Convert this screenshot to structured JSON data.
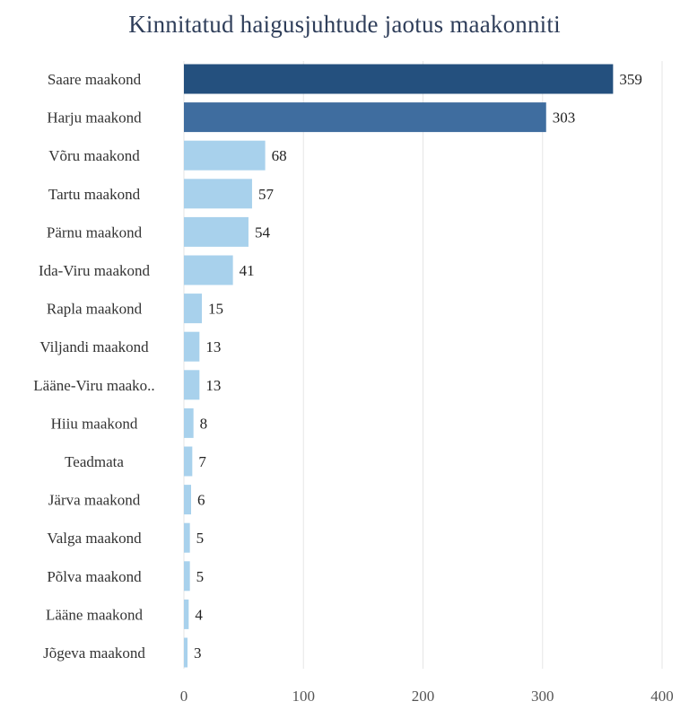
{
  "chart_data": {
    "type": "bar",
    "orientation": "horizontal",
    "title": "Kinnitatud haigusjuhtude jaotus maakonniti",
    "categories": [
      "Saare maakond",
      "Harju maakond",
      "Võru maakond",
      "Tartu maakond",
      "Pärnu maakond",
      "Ida-Viru maakond",
      "Rapla maakond",
      "Viljandi maakond",
      "Lääne-Viru maako..",
      "Hiiu maakond",
      "Teadmata",
      "Järva maakond",
      "Valga maakond",
      "Põlva maakond",
      "Lääne maakond",
      "Jõgeva maakond"
    ],
    "values": [
      359,
      303,
      68,
      57,
      54,
      41,
      15,
      13,
      13,
      8,
      7,
      6,
      5,
      5,
      4,
      3
    ],
    "xlim": [
      0,
      400
    ],
    "xticks": [
      0,
      100,
      200,
      300,
      400
    ],
    "grid": true,
    "legend": "none",
    "colors": {
      "dark": "#24507e",
      "medium": "#3f6d9f",
      "light": "#a8d1ec",
      "title": "#2f3e5a"
    }
  }
}
